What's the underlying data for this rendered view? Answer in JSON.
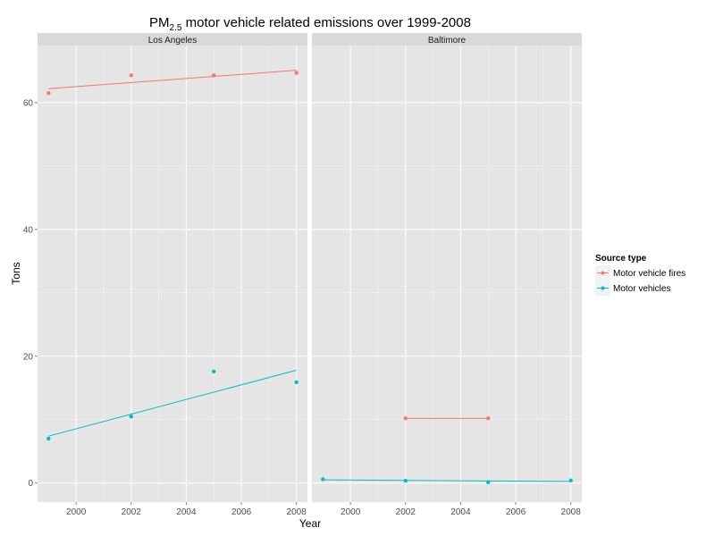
{
  "chart_data": {
    "type": "line",
    "title": {
      "prefix": "PM",
      "subscript": "2.5",
      "suffix": " motor vehicle related emissions over 1999-2008"
    },
    "xlabel": "Year",
    "ylabel": "Tons",
    "xlim": [
      1998.6,
      2008.4
    ],
    "ylim": [
      -3,
      69
    ],
    "x_ticks": [
      2000,
      2002,
      2004,
      2006,
      2008
    ],
    "y_ticks": [
      0,
      20,
      40,
      60
    ],
    "legend": {
      "title": "Source type",
      "placement": "right",
      "entries": [
        "Motor vehicle fires",
        "Motor vehicles"
      ]
    },
    "colors": {
      "Motor vehicle fires": "#F8766D",
      "Motor vehicles": "#00BFC4"
    },
    "grid": true,
    "panels": [
      {
        "name": "Los Angeles",
        "series": [
          {
            "name": "Motor vehicle fires",
            "points": [
              [
                1999,
                61.5
              ],
              [
                2002,
                64.3
              ],
              [
                2005,
                64.3
              ],
              [
                2008,
                64.7
              ]
            ],
            "trend": [
              [
                1999,
                62.2
              ],
              [
                2008,
                65.1
              ]
            ]
          },
          {
            "name": "Motor vehicles",
            "points": [
              [
                1999,
                7.0
              ],
              [
                2002,
                10.5
              ],
              [
                2005,
                17.6
              ],
              [
                2008,
                15.9
              ]
            ],
            "trend": [
              [
                1999,
                7.4
              ],
              [
                2008,
                17.8
              ]
            ]
          }
        ]
      },
      {
        "name": "Baltimore",
        "series": [
          {
            "name": "Motor vehicle fires",
            "points": [
              [
                2002,
                10.2
              ],
              [
                2005,
                10.2
              ]
            ],
            "trend": [
              [
                2002,
                10.2
              ],
              [
                2005,
                10.2
              ]
            ]
          },
          {
            "name": "Motor vehicles",
            "points": [
              [
                1999,
                0.6
              ],
              [
                2002,
                0.35
              ],
              [
                2005,
                0.12
              ],
              [
                2008,
                0.4
              ]
            ],
            "trend": [
              [
                1999,
                0.5
              ],
              [
                2008,
                0.25
              ]
            ]
          }
        ]
      }
    ]
  }
}
